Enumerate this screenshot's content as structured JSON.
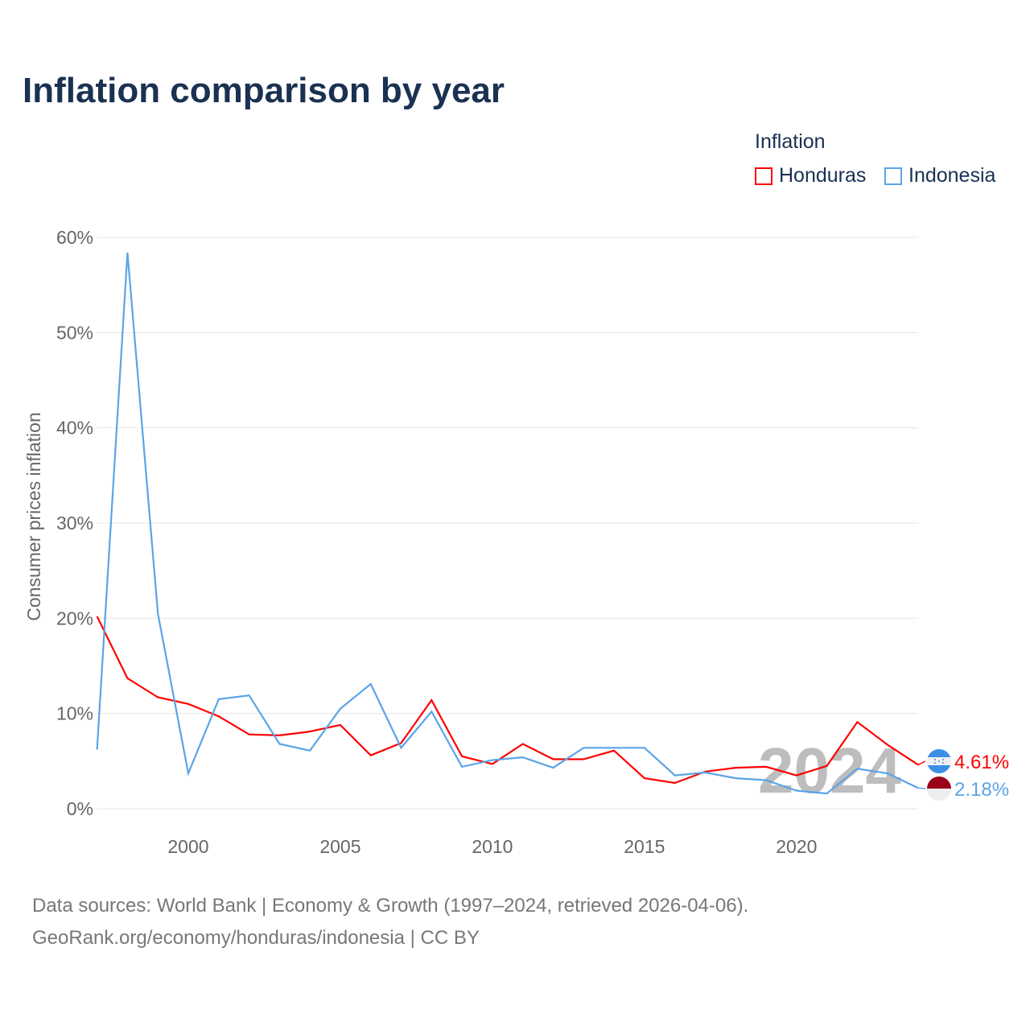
{
  "chart_data": {
    "type": "line",
    "title": "Inflation comparison by year",
    "legend_title": "Inflation",
    "legend_position": "top-right",
    "ylabel": "Consumer prices inflation",
    "xlabel": "",
    "ylim": [
      0,
      60
    ],
    "xlim": [
      1997,
      2024
    ],
    "yticks": [
      0,
      10,
      20,
      30,
      40,
      50,
      60
    ],
    "ytick_labels": [
      "0%",
      "10%",
      "20%",
      "30%",
      "40%",
      "50%",
      "60%"
    ],
    "xticks": [
      2000,
      2005,
      2010,
      2015,
      2020
    ],
    "xtick_labels": [
      "2000",
      "2005",
      "2010",
      "2015",
      "2020"
    ],
    "grid": true,
    "watermark_year": "2024",
    "x": [
      1997,
      1998,
      1999,
      2000,
      2001,
      2002,
      2003,
      2004,
      2005,
      2006,
      2007,
      2008,
      2009,
      2010,
      2011,
      2012,
      2013,
      2014,
      2015,
      2016,
      2017,
      2018,
      2019,
      2020,
      2021,
      2022,
      2023,
      2024
    ],
    "series": [
      {
        "name": "Honduras",
        "color": "#ff0000",
        "end_label": "4.61%",
        "values": [
          20.2,
          13.7,
          11.7,
          11.0,
          9.7,
          7.8,
          7.7,
          8.1,
          8.8,
          5.6,
          6.9,
          11.4,
          5.5,
          4.7,
          6.8,
          5.2,
          5.2,
          6.1,
          3.2,
          2.7,
          3.9,
          4.3,
          4.4,
          3.5,
          4.5,
          9.1,
          6.7,
          4.61
        ]
      },
      {
        "name": "Indonesia",
        "color": "#5ba4e8",
        "end_label": "2.18%",
        "values": [
          6.2,
          58.4,
          20.5,
          3.7,
          11.5,
          11.9,
          6.8,
          6.1,
          10.5,
          13.1,
          6.4,
          10.2,
          4.4,
          5.1,
          5.4,
          4.3,
          6.4,
          6.4,
          6.4,
          3.5,
          3.8,
          3.2,
          3.0,
          1.9,
          1.6,
          4.2,
          3.7,
          2.18
        ]
      }
    ]
  },
  "footer": {
    "line1": "Data sources: World Bank | Economy & Growth (1997–2024, retrieved 2026-04-06).",
    "line2": "GeoRank.org/economy/honduras/indonesia | CC BY"
  }
}
